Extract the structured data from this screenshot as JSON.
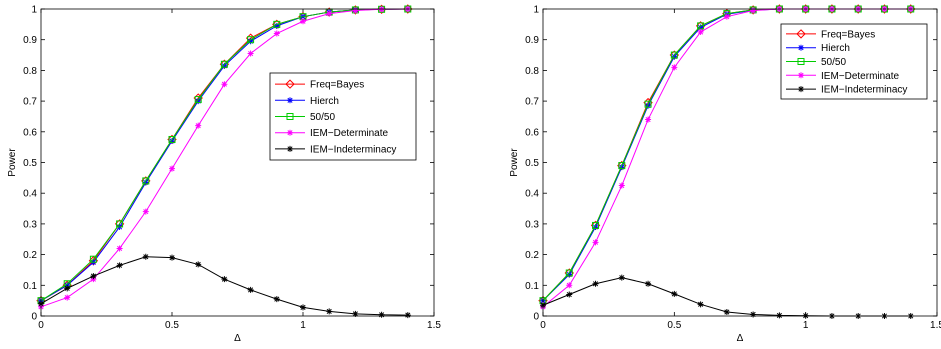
{
  "chart_data": [
    {
      "type": "line",
      "xlabel": "Δ",
      "ylabel": "Power",
      "xlim": [
        0,
        1.5
      ],
      "ylim": [
        0,
        1
      ],
      "xticks": [
        "0",
        "0.5",
        "1",
        "1.5"
      ],
      "yticks": [
        "0",
        "0.1",
        "0.2",
        "0.3",
        "0.4",
        "0.5",
        "0.6",
        "0.7",
        "0.8",
        "0.9",
        "1"
      ],
      "legend_position": "center-right",
      "x": [
        0,
        0.1,
        0.2,
        0.3,
        0.4,
        0.5,
        0.6,
        0.7,
        0.8,
        0.9,
        1.0,
        1.1,
        1.2,
        1.3,
        1.4
      ],
      "series": [
        {
          "name": "Freq=Bayes",
          "color": "#ff0000",
          "marker": "diamond",
          "values": [
            0.05,
            0.1,
            0.18,
            0.3,
            0.44,
            0.575,
            0.71,
            0.82,
            0.905,
            0.95,
            0.975,
            0.99,
            0.997,
            0.999,
            1.0
          ]
        },
        {
          "name": "Hierch",
          "color": "#0000ff",
          "marker": "asterisk",
          "values": [
            0.05,
            0.1,
            0.175,
            0.29,
            0.435,
            0.57,
            0.7,
            0.815,
            0.895,
            0.945,
            0.975,
            0.99,
            0.997,
            0.999,
            1.0
          ]
        },
        {
          "name": "50/50",
          "color": "#00cc00",
          "marker": "square",
          "values": [
            0.05,
            0.105,
            0.185,
            0.3,
            0.44,
            0.575,
            0.705,
            0.82,
            0.9,
            0.95,
            0.975,
            0.99,
            0.997,
            0.999,
            1.0
          ]
        },
        {
          "name": "IEM−Determinate",
          "color": "#ff00ff",
          "marker": "asterisk",
          "values": [
            0.03,
            0.06,
            0.12,
            0.22,
            0.34,
            0.48,
            0.62,
            0.755,
            0.855,
            0.92,
            0.96,
            0.985,
            0.995,
            0.999,
            1.0
          ]
        },
        {
          "name": "IEM−Indeterminacy",
          "color": "#000000",
          "marker": "asterisk",
          "values": [
            0.04,
            0.09,
            0.13,
            0.165,
            0.193,
            0.19,
            0.168,
            0.12,
            0.085,
            0.055,
            0.028,
            0.015,
            0.007,
            0.004,
            0.003
          ]
        }
      ]
    },
    {
      "type": "line",
      "xlabel": "Δ",
      "ylabel": "Power",
      "xlim": [
        0,
        1.5
      ],
      "ylim": [
        0,
        1
      ],
      "xticks": [
        "0",
        "0.5",
        "1",
        "1.5"
      ],
      "yticks": [
        "0",
        "0.1",
        "0.2",
        "0.3",
        "0.4",
        "0.5",
        "0.6",
        "0.7",
        "0.8",
        "0.9",
        "1"
      ],
      "legend_position": "top-right",
      "x": [
        0,
        0.1,
        0.2,
        0.3,
        0.4,
        0.5,
        0.6,
        0.7,
        0.8,
        0.9,
        1.0,
        1.1,
        1.2,
        1.3,
        1.4
      ],
      "series": [
        {
          "name": "Freq=Bayes",
          "color": "#ff0000",
          "marker": "diamond",
          "values": [
            0.05,
            0.14,
            0.295,
            0.49,
            0.695,
            0.85,
            0.945,
            0.985,
            0.997,
            1.0,
            1.0,
            1.0,
            1.0,
            1.0,
            1.0
          ]
        },
        {
          "name": "Hierch",
          "color": "#0000ff",
          "marker": "asterisk",
          "values": [
            0.05,
            0.135,
            0.29,
            0.485,
            0.685,
            0.845,
            0.94,
            0.983,
            0.996,
            1.0,
            1.0,
            1.0,
            1.0,
            1.0,
            1.0
          ]
        },
        {
          "name": "50/50",
          "color": "#00cc00",
          "marker": "square",
          "values": [
            0.05,
            0.14,
            0.295,
            0.49,
            0.69,
            0.85,
            0.945,
            0.985,
            0.997,
            1.0,
            1.0,
            1.0,
            1.0,
            1.0,
            1.0
          ]
        },
        {
          "name": "IEM−Determinate",
          "color": "#ff00ff",
          "marker": "asterisk",
          "values": [
            0.03,
            0.1,
            0.24,
            0.425,
            0.64,
            0.81,
            0.925,
            0.975,
            0.995,
            1.0,
            1.0,
            1.0,
            1.0,
            1.0,
            1.0
          ]
        },
        {
          "name": "IEM−Indeterminacy",
          "color": "#000000",
          "marker": "asterisk",
          "values": [
            0.035,
            0.07,
            0.105,
            0.125,
            0.105,
            0.072,
            0.038,
            0.013,
            0.005,
            0.002,
            0.001,
            0.0,
            0.0,
            0.0,
            0.0
          ]
        }
      ]
    }
  ]
}
